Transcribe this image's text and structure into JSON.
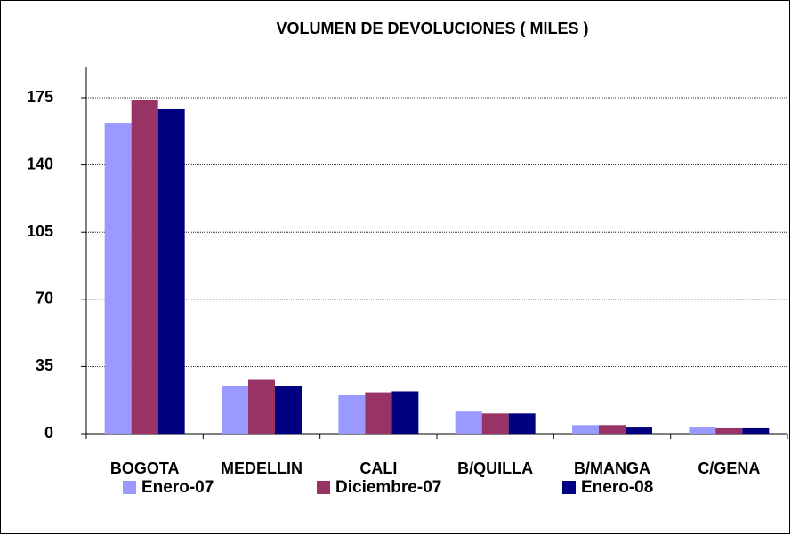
{
  "chart_data": {
    "type": "bar",
    "title": "VOLUMEN DE DEVOLUCIONES ( MILES )",
    "categories": [
      "BOGOTA",
      "MEDELLIN",
      "CALI",
      "B/QUILLA",
      "B/MANGA",
      "C/GENA"
    ],
    "series": [
      {
        "name": "Enero-07",
        "color": "#9999ff",
        "values": [
          162,
          25,
          20,
          11.5,
          4.5,
          3.2
        ]
      },
      {
        "name": "Diciembre-07",
        "color": "#993366",
        "values": [
          174,
          28,
          21.5,
          10.5,
          4.5,
          2.8
        ]
      },
      {
        "name": "Enero-08",
        "color": "#000080",
        "values": [
          169,
          25,
          22,
          10.5,
          3.2,
          2.8
        ]
      }
    ],
    "ylim": [
      0,
      175
    ],
    "yticks": [
      0,
      35,
      70,
      105,
      140,
      175
    ],
    "grid": true,
    "legend": "bottom"
  }
}
